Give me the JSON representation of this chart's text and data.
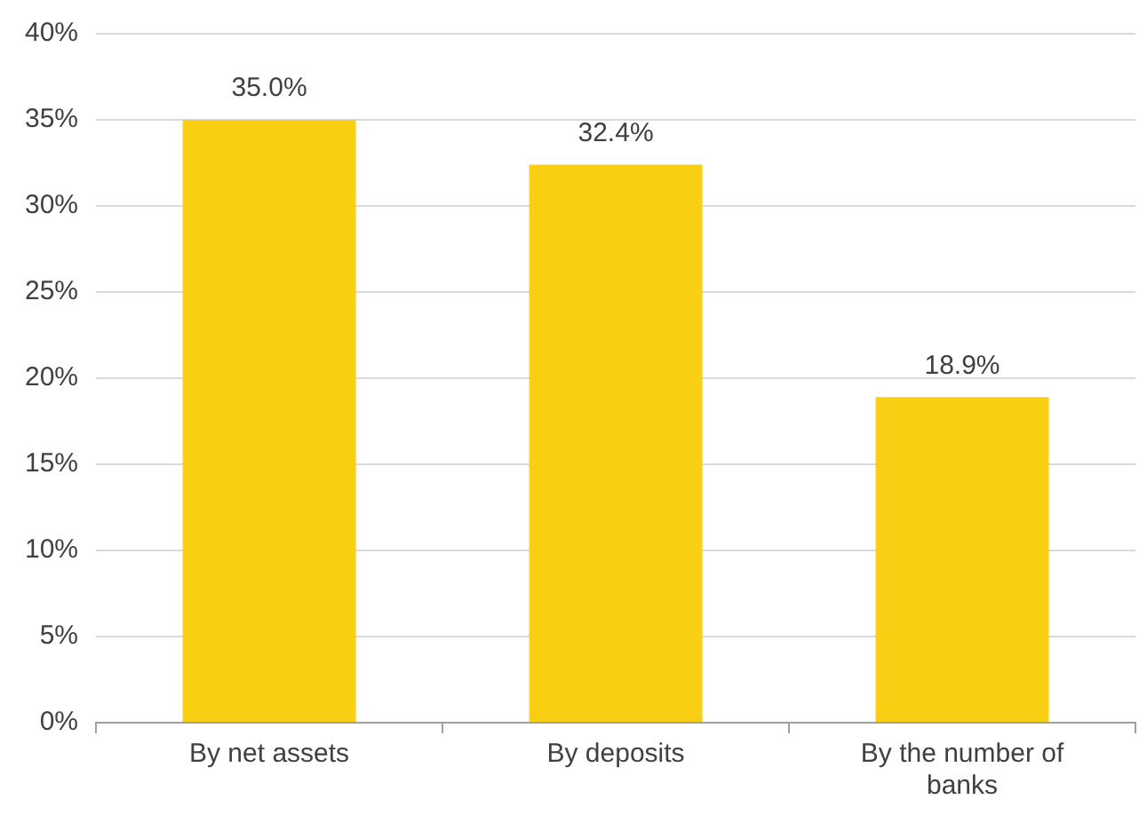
{
  "chart_data": {
    "type": "bar",
    "categories": [
      "By net assets",
      "By deposits",
      "By the number of banks"
    ],
    "values": [
      35.0,
      32.4,
      18.9
    ],
    "color": "#f8cf12",
    "value_labels": [
      "35.0%",
      "32.4%",
      "18.9%"
    ],
    "ylim": [
      0,
      40
    ],
    "yticks": [
      {
        "value": 0,
        "label": "0%"
      },
      {
        "value": 5,
        "label": "5%"
      },
      {
        "value": 10,
        "label": "10%"
      },
      {
        "value": 15,
        "label": "15%"
      },
      {
        "value": 20,
        "label": "20%"
      },
      {
        "value": 25,
        "label": "25%"
      },
      {
        "value": 30,
        "label": "30%"
      },
      {
        "value": 35,
        "label": "35%"
      },
      {
        "value": 40,
        "label": "40%"
      }
    ],
    "grid": "y",
    "legend": false
  }
}
